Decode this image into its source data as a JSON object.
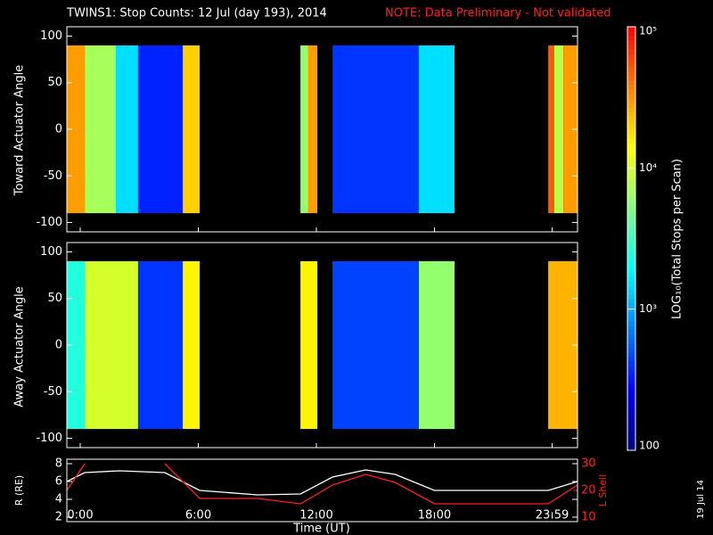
{
  "chart_data": [
    {
      "type": "heatmap",
      "title": "TWINS1: Stop Counts: 12 Jul (day 193), 2014",
      "note": "NOTE: Data Preliminary - Not validated",
      "ylabel": "Toward Actuator Angle",
      "xlim": [
        -0.68,
        25.27
      ],
      "ylim": [
        -110,
        110
      ],
      "yticks": [
        -100,
        -50,
        0,
        50,
        100
      ],
      "band": [
        -90,
        90
      ],
      "segments": [
        {
          "x": [
            -0.68,
            0.23
          ],
          "value": 30000
        },
        {
          "x": [
            0.23,
            1.81
          ],
          "value": 7000
        },
        {
          "x": [
            1.81,
            2.94
          ],
          "value": 1500
        },
        {
          "x": [
            2.94,
            5.21
          ],
          "value": 350
        },
        {
          "x": [
            5.21,
            6.07
          ],
          "value": 20000
        },
        {
          "x": [
            11.19,
            11.59
          ],
          "value": 6000
        },
        {
          "x": [
            11.59,
            12.05
          ],
          "value": 30000
        },
        {
          "x": [
            12.82,
            17.21
          ],
          "value": 400
        },
        {
          "x": [
            17.21,
            19.02
          ],
          "value": 1500
        },
        {
          "x": [
            23.78,
            24.09
          ],
          "value": 50000
        },
        {
          "x": [
            24.09,
            24.55
          ],
          "value": 8000
        },
        {
          "x": [
            24.55,
            25.27
          ],
          "value": 30000
        }
      ],
      "colorbar": {
        "label": "LOG₁₀(Total Stops per Scan)",
        "log": true,
        "lim": [
          100,
          100000
        ],
        "ticks": [
          {
            "value": 100,
            "label": "100"
          },
          {
            "value": 1000,
            "label": "10³"
          },
          {
            "value": 10000,
            "label": "10⁴"
          },
          {
            "value": 100000,
            "label": "10⁵"
          }
        ],
        "colormap": [
          "#00007f",
          "#0000ff",
          "#0080ff",
          "#00ffff",
          "#80ff80",
          "#ffff00",
          "#ff8000",
          "#ff0000"
        ]
      }
    },
    {
      "type": "heatmap",
      "ylabel": "Away Actuator Angle",
      "xlim": [
        -0.68,
        25.27
      ],
      "ylim": [
        -110,
        110
      ],
      "yticks": [
        -100,
        -50,
        0,
        50,
        100
      ],
      "band": [
        -90,
        90
      ],
      "segments": [
        {
          "x": [
            -0.68,
            0.23
          ],
          "value": 2500
        },
        {
          "x": [
            0.23,
            2.94
          ],
          "value": 10000
        },
        {
          "x": [
            2.94,
            5.21
          ],
          "value": 400
        },
        {
          "x": [
            5.21,
            6.07
          ],
          "value": 15000
        },
        {
          "x": [
            11.19,
            12.05
          ],
          "value": 15000
        },
        {
          "x": [
            12.82,
            17.21
          ],
          "value": 450
        },
        {
          "x": [
            17.21,
            19.02
          ],
          "value": 6000
        },
        {
          "x": [
            23.78,
            25.27
          ],
          "value": 25000
        }
      ]
    },
    {
      "type": "line",
      "ylabel": "R (RE)",
      "y2label": "L Shell",
      "xlabel": "Time (UT)",
      "xlim": [
        -0.68,
        25.27
      ],
      "ylim": [
        2,
        8
      ],
      "yticks": [
        2,
        4,
        6,
        8
      ],
      "y2lim": [
        10,
        30
      ],
      "y2ticks": [
        10,
        20,
        30
      ],
      "xticks": [
        {
          "value": 0,
          "label": "0:00"
        },
        {
          "value": 6,
          "label": "6:00"
        },
        {
          "value": 12,
          "label": "12:00"
        },
        {
          "value": 18,
          "label": "18:00"
        },
        {
          "value": 23.98,
          "label": "23:59"
        }
      ],
      "x": [
        -0.68,
        0.23,
        2,
        4.3,
        6.07,
        9,
        11.19,
        12.82,
        14.5,
        16,
        18,
        21,
        23.78,
        25.27
      ],
      "series": [
        {
          "name": "R",
          "color": "#ffffff",
          "values": [
            6,
            7,
            7.2,
            7,
            5,
            4.5,
            4.6,
            6.5,
            7.3,
            6.8,
            5,
            5,
            5,
            6
          ]
        },
        {
          "name": "L Shell",
          "color": "#ff2020",
          "axis": "y2",
          "values": [
            20,
            30,
            null,
            30,
            17,
            17,
            15,
            22,
            26,
            23,
            15,
            15,
            15,
            22
          ]
        }
      ]
    }
  ],
  "date_stamp": "19 Jul 14"
}
